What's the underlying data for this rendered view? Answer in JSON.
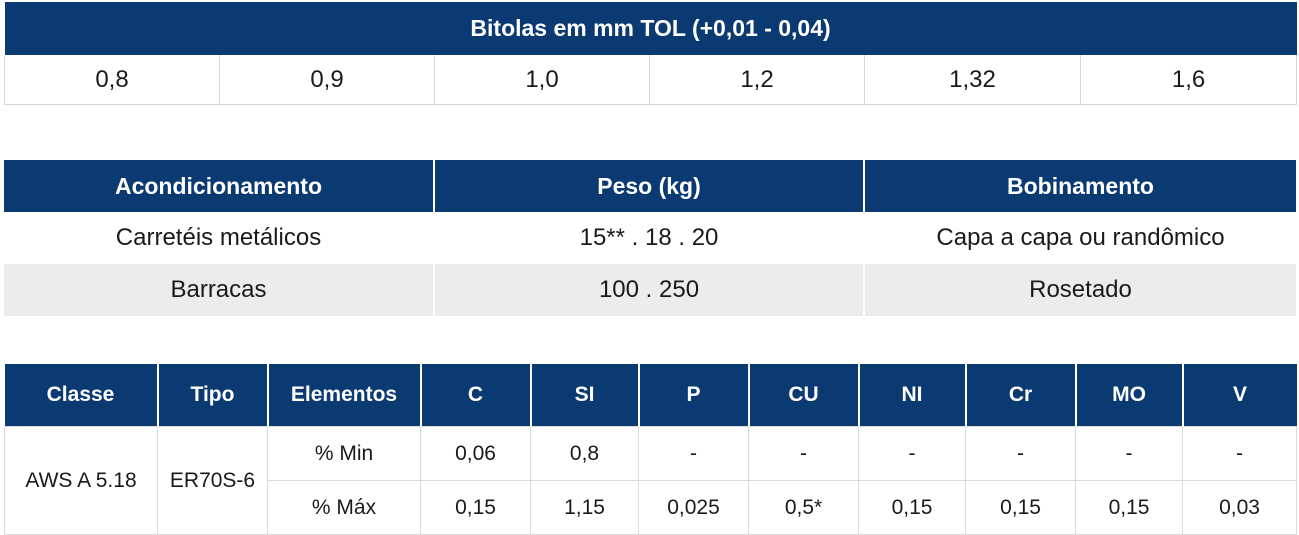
{
  "bitolas": {
    "title": "Bitolas em mm TOL (+0,01 - 0,04)",
    "values": [
      "0,8",
      "0,9",
      "1,0",
      "1,2",
      "1,32",
      "1,6"
    ]
  },
  "packaging": {
    "headers": [
      "Acondicionamento",
      "Peso (kg)",
      "Bobinamento"
    ],
    "rows": [
      [
        "Carretéis metálicos",
        "15** . 18 . 20",
        "Capa a capa ou randômico"
      ],
      [
        "Barracas",
        "100 . 250",
        "Rosetado"
      ]
    ]
  },
  "composition": {
    "headers": [
      "Classe",
      "Tipo",
      "Elementos",
      "C",
      "SI",
      "P",
      "CU",
      "NI",
      "Cr",
      "MO",
      "V"
    ],
    "classe": "AWS A 5.18",
    "tipo": "ER70S-6",
    "rows": [
      {
        "label": "% Min",
        "values": [
          "0,06",
          "0,8",
          "-",
          "-",
          "-",
          "-",
          "-",
          "-"
        ]
      },
      {
        "label": "% Máx",
        "values": [
          "0,15",
          "1,15",
          "0,025",
          "0,5*",
          "0,15",
          "0,15",
          "0,15",
          "0,03"
        ]
      }
    ]
  }
}
